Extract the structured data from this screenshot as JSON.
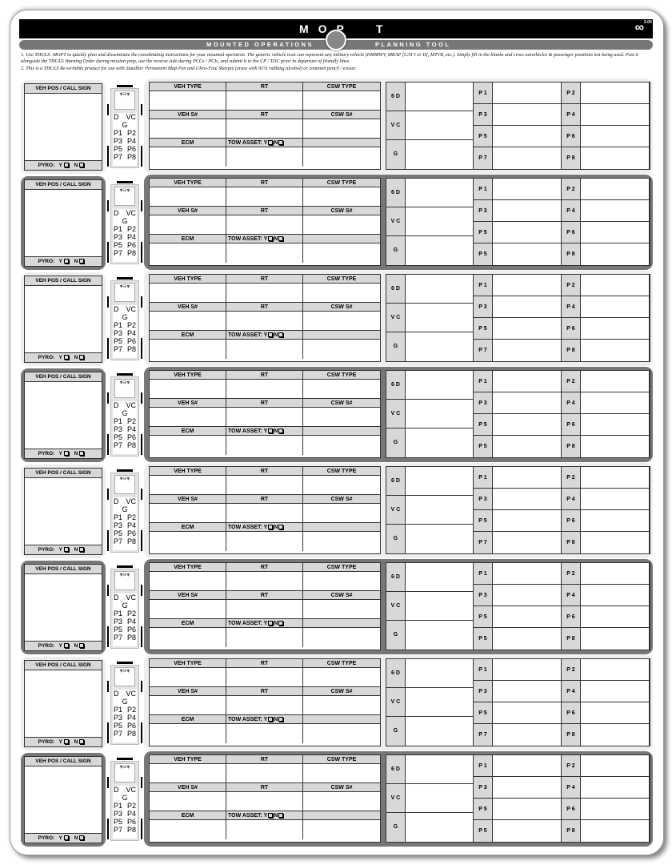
{
  "header": {
    "title_left": "MOP",
    "title_right": "T",
    "subtitle_left": "MOUNTED OPERATIONS",
    "subtitle_right": "PLANNING TOOL",
    "logo_text": "2.00"
  },
  "instructions": [
    "1.  Use THULS: MOPT to quickly plan and disseminate the coordinating instructions for your mounted operation. The generic vehicle icon can represent any military vehicle (HMMWV, MRAP [CAT I or II], MTVR, etc.). Simply fill in the blanks and cross outvehicles & passenger positions not being used. Post it alongside the THULS Warning Order during mission prep, use the reverse side during PCCs / PCIs, and submit it to the CP / TOC prior to departure of friendly lines.",
    "2.  This is a THULS Re-writable product for use with Staedtler Permanent Map Pen and Ultra-Fine Sharpie (erase with 91% rubbing alcohol) or common pencil / eraser."
  ],
  "labels": {
    "call_sign": "VEH POS / CALL SIGN",
    "pyro": "PYRO:",
    "y": "Y",
    "n": "N",
    "veh_type": "VEH TYPE",
    "rt": "RT",
    "csw_type": "CSW TYPE",
    "veh_sn": "VEH S#",
    "csw_sn": "CSW S#",
    "ecm": "ECM",
    "tow": "TOW ASSET:  Y",
    "tow_n": "N",
    "six_d": "6 D",
    "vc": "V C",
    "g": "G",
    "p1": "P 1",
    "p2": "P 2",
    "p3": "P 3",
    "p4": "P 4",
    "p5": "P 5",
    "p6": "P 6",
    "p8": "P 8"
  },
  "vehicle_icon": {
    "d": "D",
    "vc": "VC",
    "g": "G",
    "seats": [
      [
        "P1",
        "P2"
      ],
      [
        "P3",
        "P4"
      ],
      [
        "P5",
        "P6"
      ],
      [
        "P7",
        "P8"
      ]
    ]
  },
  "rows": [
    {
      "style": "light",
      "seventh_label": "P 7"
    },
    {
      "style": "dark",
      "seventh_label": "P 5"
    },
    {
      "style": "light",
      "seventh_label": "P 7"
    },
    {
      "style": "dark",
      "seventh_label": "P 5"
    },
    {
      "style": "light",
      "seventh_label": "P 7"
    },
    {
      "style": "dark",
      "seventh_label": "P 5"
    },
    {
      "style": "light",
      "seventh_label": "P 7"
    },
    {
      "style": "dark",
      "seventh_label": "P 5"
    }
  ],
  "colors": {
    "dark_border": "#777777",
    "light_card": "#eeeeee",
    "label_fill": "#d8d8d8"
  }
}
